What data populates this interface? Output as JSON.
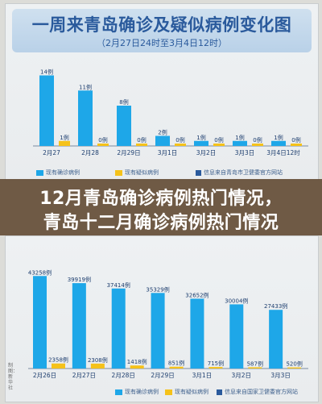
{
  "banner": {
    "line1": "12月青岛确诊病例热门情况，",
    "line2": "青岛十二月确诊病例热门情况"
  },
  "top_chart": {
    "title": "一周来青岛确诊及疑似病例变化图",
    "subtitle": "（2月27日24时至3月4日12时）",
    "legend_confirmed": "现有确诊病例",
    "legend_suspected": "现有疑似病例",
    "source": "信息来自青岛市卫健委官方网站"
  },
  "bottom_chart": {
    "side_note": "制图：新华社",
    "legend_confirmed": "现有确诊病例",
    "legend_suspected": "现有疑似病例",
    "source": "信息来自国家卫健委官方网站"
  },
  "colors": {
    "confirmed": "#1ea7e8",
    "suspected": "#f5c21a",
    "title_blue": "#2a5a9c"
  },
  "chart_data": [
    {
      "type": "bar",
      "categories": [
        "2月27",
        "2月28",
        "2月29日",
        "3月1日",
        "3月2日",
        "3月3日",
        "3月4日12时"
      ],
      "series": [
        {
          "name": "现有确诊病例",
          "values": [
            14,
            11,
            8,
            2,
            1,
            1,
            1
          ],
          "labels": [
            "14例",
            "11例",
            "8例",
            "2例",
            "1例",
            "1例",
            "1例"
          ]
        },
        {
          "name": "现有疑似病例",
          "values": [
            1,
            0,
            0,
            0,
            0,
            0,
            0
          ],
          "labels": [
            "1例",
            "0例",
            "0例",
            "0例",
            "0例",
            "0例",
            "0例"
          ]
        }
      ],
      "ylim": [
        0,
        16
      ]
    },
    {
      "type": "bar",
      "categories": [
        "2月26日",
        "2月27日",
        "2月28日",
        "2月29日",
        "3月1日",
        "3月2日",
        "3月3日"
      ],
      "series": [
        {
          "name": "现有确诊病例",
          "values": [
            43258,
            39919,
            37414,
            35329,
            32652,
            30004,
            27433
          ],
          "labels": [
            "43258例",
            "39919例",
            "37414例",
            "35329例",
            "32652例",
            "30004例",
            "27433例"
          ]
        },
        {
          "name": "现有疑似病例",
          "values": [
            2358,
            2308,
            1418,
            851,
            715,
            587,
            520
          ],
          "labels": [
            "2358例",
            "2308例",
            "1418例",
            "851例",
            "715例",
            "587例",
            "520例"
          ]
        }
      ],
      "ylim": [
        0,
        46000
      ]
    }
  ]
}
